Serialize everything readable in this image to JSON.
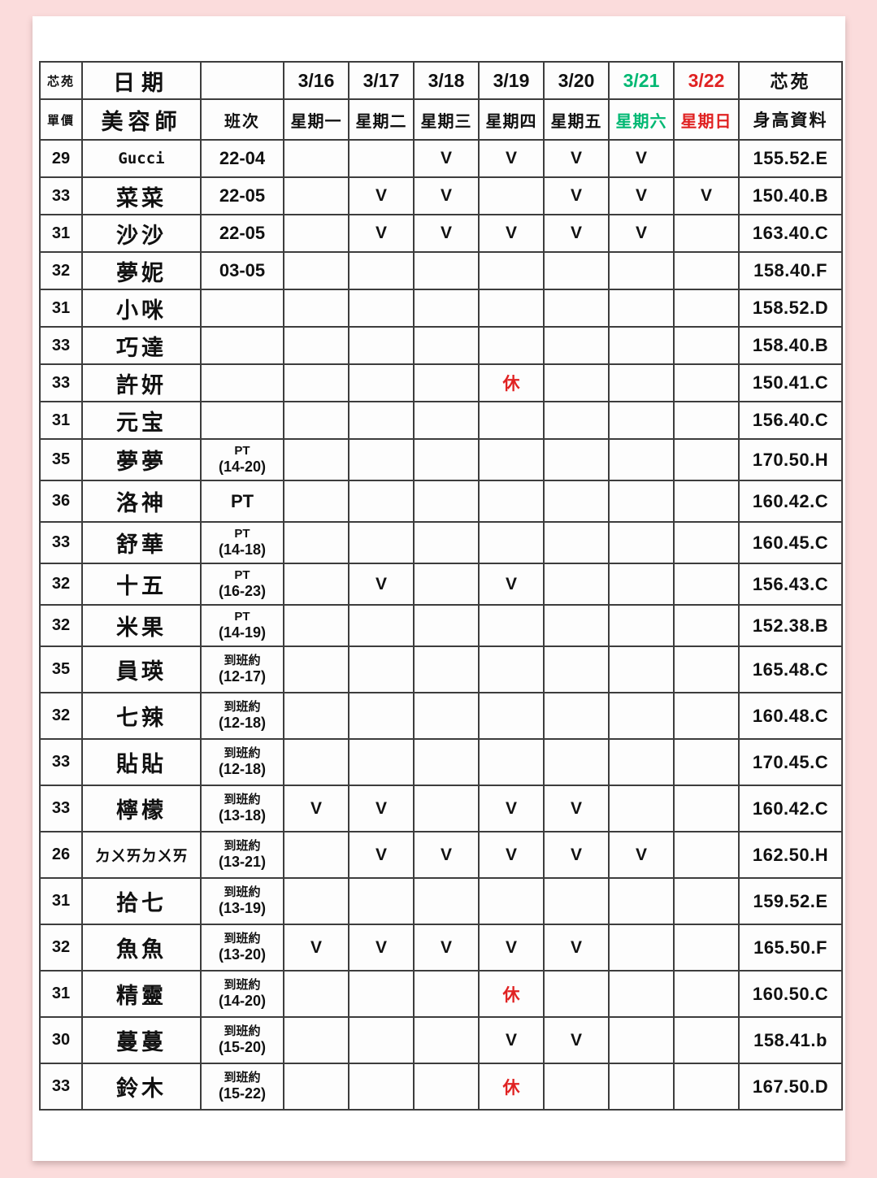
{
  "colors": {
    "pink": "#fbdcdc",
    "sheet": "#ffffff",
    "line": "#3d3d3d",
    "green": "#00a651",
    "satgreen": "#00b873",
    "red": "#e02222",
    "navy": "#1c3a66",
    "blue": "#2e93cf",
    "purple": "#7030a0",
    "ink": "#111111"
  },
  "table": {
    "corner_top_left": "芯苑",
    "corner_bottom_left": "單價",
    "corner_top_right": "芯苑",
    "date_label": "日期",
    "beautician_label": "美容師",
    "shift_label": "班次",
    "height_label": "身高資料",
    "days": [
      {
        "date": "3/16",
        "weekday": "星期一",
        "color": "default"
      },
      {
        "date": "3/17",
        "weekday": "星期二",
        "color": "default"
      },
      {
        "date": "3/18",
        "weekday": "星期三",
        "color": "default"
      },
      {
        "date": "3/19",
        "weekday": "星期四",
        "color": "default"
      },
      {
        "date": "3/20",
        "weekday": "星期五",
        "color": "default"
      },
      {
        "date": "3/21",
        "weekday": "星期六",
        "color": "green"
      },
      {
        "date": "3/22",
        "weekday": "星期日",
        "color": "red"
      }
    ],
    "rows": [
      {
        "price": "29",
        "name": "Gucci",
        "shift": "22-04",
        "shift2": "",
        "marks": [
          "",
          "",
          "V",
          "V",
          "V",
          "V",
          ""
        ],
        "height": "155.52.E"
      },
      {
        "price": "33",
        "name": "菜菜",
        "shift": "22-05",
        "shift2": "",
        "marks": [
          "",
          "V",
          "V",
          "",
          "V",
          "V",
          "V"
        ],
        "height": "150.40.B"
      },
      {
        "price": "31",
        "name": "沙沙",
        "shift": "22-05",
        "shift2": "",
        "marks": [
          "",
          "V",
          "V",
          "V",
          "V",
          "V",
          ""
        ],
        "height": "163.40.C"
      },
      {
        "price": "32",
        "name": "夢妮",
        "shift": "03-05",
        "shift2": "",
        "marks": [
          "",
          "",
          "",
          "",
          "",
          "",
          ""
        ],
        "height": "158.40.F"
      },
      {
        "price": "31",
        "name": "小咪",
        "shift": "",
        "shift2": "",
        "marks": [
          "",
          "",
          "",
          "",
          "",
          "",
          ""
        ],
        "height": "158.52.D"
      },
      {
        "price": "33",
        "name": "巧達",
        "shift": "",
        "shift2": "",
        "marks": [
          "",
          "",
          "",
          "",
          "",
          "",
          ""
        ],
        "height": "158.40.B"
      },
      {
        "price": "33",
        "name": "許妍",
        "shift": "",
        "shift2": "",
        "marks": [
          "",
          "",
          "",
          "休",
          "",
          "",
          ""
        ],
        "height": "150.41.C"
      },
      {
        "price": "31",
        "name": "元宝",
        "shift": "",
        "shift2": "",
        "marks": [
          "",
          "",
          "",
          "",
          "",
          "",
          ""
        ],
        "height": "156.40.C"
      },
      {
        "price": "35",
        "name": "夢夢",
        "shift": "PT",
        "shift2": "(14-20)",
        "marks": [
          "",
          "",
          "",
          "",
          "",
          "",
          ""
        ],
        "height": "170.50.H"
      },
      {
        "price": "36",
        "name": "洛神",
        "shift": "PT",
        "shift2": "",
        "marks": [
          "",
          "",
          "",
          "",
          "",
          "",
          ""
        ],
        "height": "160.42.C"
      },
      {
        "price": "33",
        "name": "舒華",
        "shift": "PT",
        "shift2": "(14-18)",
        "marks": [
          "",
          "",
          "",
          "",
          "",
          "",
          ""
        ],
        "height": "160.45.C"
      },
      {
        "price": "32",
        "name": "十五",
        "shift": "PT",
        "shift2": "(16-23)",
        "marks": [
          "",
          "V",
          "",
          "V",
          "",
          "",
          ""
        ],
        "height": "156.43.C"
      },
      {
        "price": "32",
        "name": "米果",
        "shift": "PT",
        "shift2": "(14-19)",
        "marks": [
          "",
          "",
          "",
          "",
          "",
          "",
          ""
        ],
        "height": "152.38.B"
      },
      {
        "price": "35",
        "name": "員瑛",
        "shift": "到班約",
        "shift2": "(12-17)",
        "marks": [
          "",
          "",
          "",
          "",
          "",
          "",
          ""
        ],
        "height": "165.48.C"
      },
      {
        "price": "32",
        "name": "七辣",
        "shift": "到班約",
        "shift2": "(12-18)",
        "marks": [
          "",
          "",
          "",
          "",
          "",
          "",
          ""
        ],
        "height": "160.48.C"
      },
      {
        "price": "33",
        "name": "貼貼",
        "shift": "到班約",
        "shift2": "(12-18)",
        "marks": [
          "",
          "",
          "",
          "",
          "",
          "",
          ""
        ],
        "height": "170.45.C"
      },
      {
        "price": "33",
        "name": "檸檬",
        "shift": "到班約",
        "shift2": "(13-18)",
        "marks": [
          "V",
          "V",
          "",
          "V",
          "V",
          "",
          ""
        ],
        "height": "160.42.C"
      },
      {
        "price": "26",
        "name": "ㄉㄨㄞㄉㄨㄞ",
        "shift": "到班約",
        "shift2": "(13-21)",
        "marks": [
          "",
          "V",
          "V",
          "V",
          "V",
          "V",
          ""
        ],
        "height": "162.50.H"
      },
      {
        "price": "31",
        "name": "拾七",
        "shift": "到班約",
        "shift2": "(13-19)",
        "marks": [
          "",
          "",
          "",
          "",
          "",
          "",
          ""
        ],
        "height": "159.52.E"
      },
      {
        "price": "32",
        "name": "魚魚",
        "shift": "到班約",
        "shift2": "(13-20)",
        "marks": [
          "V",
          "V",
          "V",
          "V",
          "V",
          "",
          ""
        ],
        "height": "165.50.F"
      },
      {
        "price": "31",
        "name": "精靈",
        "shift": "到班約",
        "shift2": "(14-20)",
        "marks": [
          "",
          "",
          "",
          "休",
          "",
          "",
          ""
        ],
        "height": "160.50.C"
      },
      {
        "price": "30",
        "name": "蔓蔓",
        "shift": "到班約",
        "shift2": "(15-20)",
        "marks": [
          "",
          "",
          "",
          "V",
          "V",
          "",
          ""
        ],
        "height": "158.41.b"
      },
      {
        "price": "33",
        "name": "鈴木",
        "shift": "到班約",
        "shift2": "(15-22)",
        "marks": [
          "",
          "",
          "",
          "休",
          "",
          "",
          ""
        ],
        "height": "167.50.D"
      }
    ]
  }
}
